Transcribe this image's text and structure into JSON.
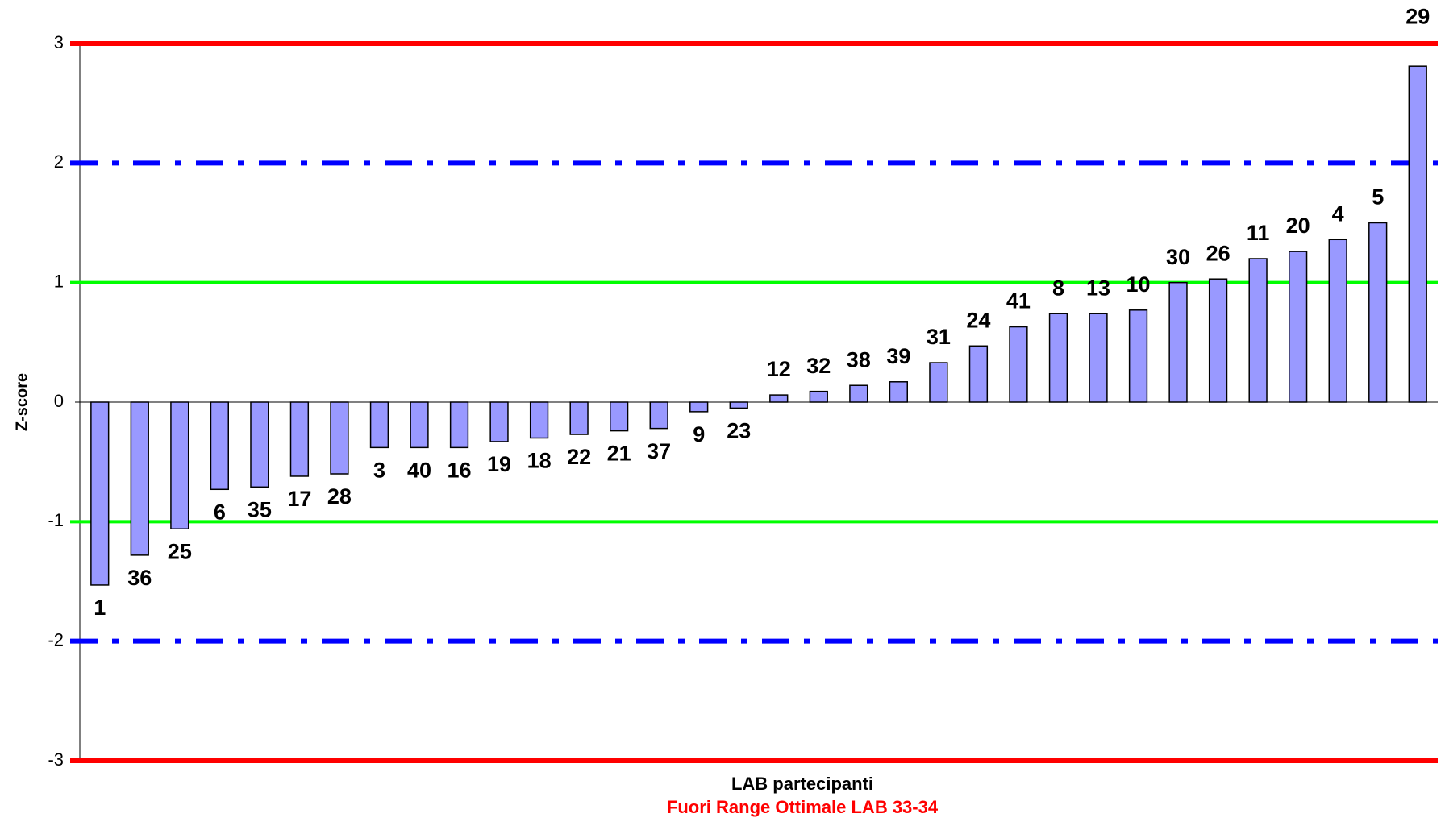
{
  "chart_data": {
    "type": "bar",
    "y_label": "Z-score",
    "x_label": "LAB partecipanti",
    "note": "Fuori Range Ottimale LAB 33-34",
    "categories": [
      "1",
      "36",
      "25",
      "6",
      "35",
      "17",
      "28",
      "3",
      "40",
      "16",
      "19",
      "18",
      "22",
      "21",
      "37",
      "9",
      "23",
      "12",
      "32",
      "38",
      "39",
      "31",
      "24",
      "41",
      "8",
      "13",
      "10",
      "30",
      "26",
      "11",
      "20",
      "4",
      "5",
      "29"
    ],
    "values": [
      -1.53,
      -1.28,
      -1.06,
      -0.73,
      -0.71,
      -0.62,
      -0.6,
      -0.38,
      -0.38,
      -0.38,
      -0.33,
      -0.3,
      -0.27,
      -0.24,
      -0.22,
      -0.08,
      -0.05,
      0.06,
      0.09,
      0.14,
      0.17,
      0.33,
      0.47,
      0.63,
      0.74,
      0.74,
      0.77,
      1.0,
      1.03,
      1.2,
      1.26,
      1.36,
      1.5,
      2.81
    ],
    "color": "#9999ff",
    "ylim": [
      -3,
      3
    ],
    "yticks": [
      -3,
      -2,
      -1,
      0,
      1,
      2,
      3
    ],
    "reference_lines": [
      {
        "value": 3,
        "color": "#ff0000",
        "style": "solid"
      },
      {
        "value": -3,
        "color": "#ff0000",
        "style": "solid"
      },
      {
        "value": 2,
        "color": "#0000ff",
        "style": "dashdot"
      },
      {
        "value": -2,
        "color": "#0000ff",
        "style": "dashdot"
      },
      {
        "value": 1,
        "color": "#00ff00",
        "style": "solid"
      },
      {
        "value": -1,
        "color": "#00ff00",
        "style": "solid"
      }
    ]
  }
}
